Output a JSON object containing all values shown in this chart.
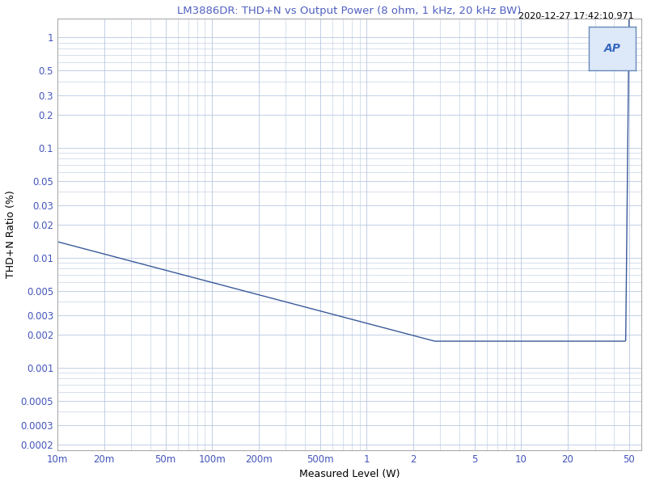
{
  "title": "LM3886DR: THD+N vs Output Power (8 ohm, 1 kHz, 20 kHz BW)",
  "timestamp": "2020-12-27 17:42:10.971",
  "xlabel": "Measured Level (W)",
  "ylabel": "THD+N Ratio (%)",
  "xmin": 0.01,
  "xmax": 60,
  "ymin": 0.00018,
  "ymax": 1.5,
  "bg_color": "#ffffff",
  "plot_bg_color": "#ffffff",
  "grid_color": "#b8c8e0",
  "line_color": "#3a5a9a",
  "title_color": "#5060c0",
  "timestamp_color": "#000000",
  "xlabel_color": "#000000",
  "ylabel_color": "#000000",
  "tick_color": "#4455bb",
  "x_ticks": [
    0.01,
    0.02,
    0.05,
    0.1,
    0.2,
    0.5,
    1,
    2,
    5,
    10,
    20,
    50
  ],
  "x_tick_labels": [
    "10m",
    "20m",
    "50m",
    "100m",
    "200m",
    "500m",
    "1",
    "2",
    "5",
    "10",
    "20",
    "50"
  ],
  "y_ticks": [
    1,
    0.5,
    0.3,
    0.2,
    0.1,
    0.05,
    0.03,
    0.02,
    0.01,
    0.005,
    0.003,
    0.002,
    0.001,
    0.0005,
    0.0003,
    0.0002
  ],
  "y_tick_labels": [
    "1",
    "0.5",
    "0.3",
    "0.2",
    "0.1",
    "0.05",
    "0.03",
    "0.02",
    "0.01",
    "0.005",
    "0.003",
    "0.002",
    "0.001",
    "0.0005",
    "0.0003",
    "0.0002"
  ],
  "figwidth": 8.0,
  "figheight": 6.0,
  "dpi": 100
}
